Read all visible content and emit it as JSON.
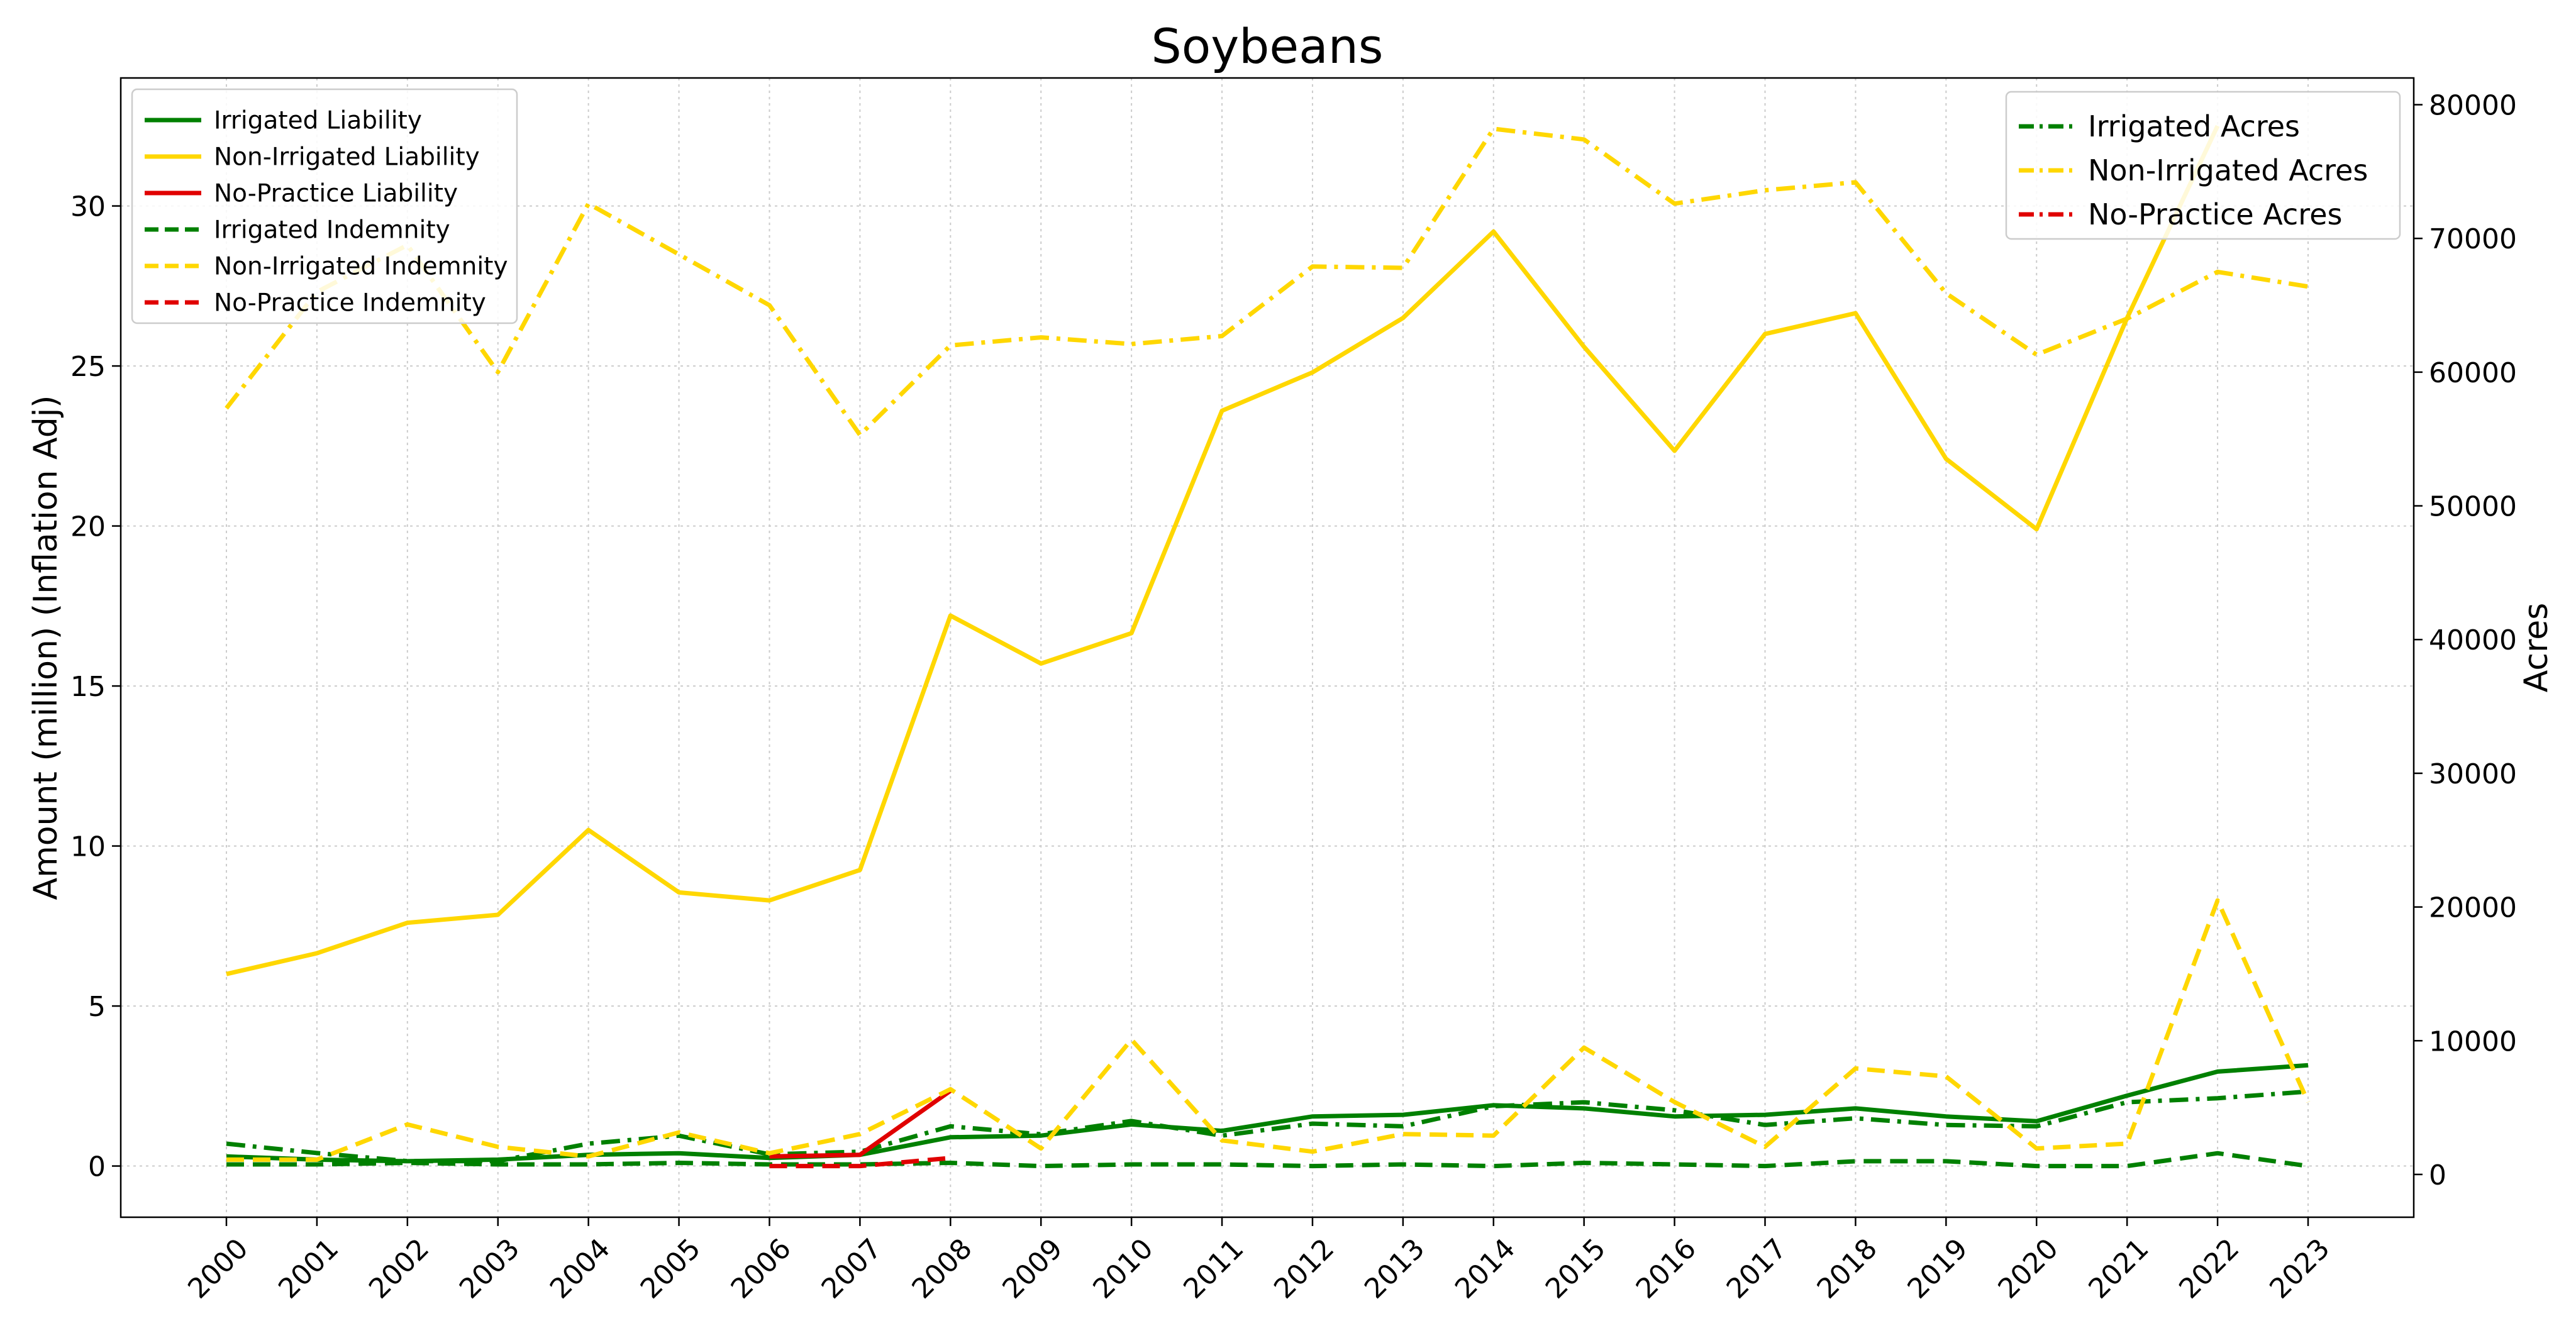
{
  "chart_data": {
    "type": "line",
    "title": "Soybeans",
    "xlabel": "",
    "ylabel": "Amount (million) (Inflation Adj)",
    "y2label": "Acres",
    "categories": [
      "2000",
      "2001",
      "2002",
      "2003",
      "2004",
      "2005",
      "2006",
      "2007",
      "2008",
      "2009",
      "2010",
      "2011",
      "2012",
      "2013",
      "2014",
      "2015",
      "2016",
      "2017",
      "2018",
      "2019",
      "2020",
      "2021",
      "2022",
      "2023"
    ],
    "ylim": [
      -1.6,
      34.0
    ],
    "y2lim": [
      -3200,
      82000
    ],
    "yticks": [
      0,
      5,
      10,
      15,
      20,
      25,
      30
    ],
    "y2ticks": [
      0,
      10000,
      20000,
      30000,
      40000,
      50000,
      60000,
      70000,
      80000
    ],
    "grid": true,
    "legend_left_placement": "upper-left",
    "legend_right_placement": "upper-right",
    "series_left": [
      {
        "name": "Irrigated Liability",
        "color": "#008000",
        "style": "solid",
        "values": [
          0.3,
          0.2,
          0.15,
          0.2,
          0.35,
          0.4,
          0.25,
          0.35,
          0.9,
          0.95,
          1.3,
          1.1,
          1.55,
          1.6,
          1.9,
          1.8,
          1.55,
          1.6,
          1.8,
          1.55,
          1.4,
          2.2,
          2.95,
          3.15
        ]
      },
      {
        "name": "Non-Irrigated Liability",
        "color": "#FFD700",
        "style": "solid",
        "values": [
          6.0,
          6.65,
          7.6,
          7.85,
          10.5,
          8.55,
          8.3,
          9.25,
          17.2,
          15.7,
          16.65,
          23.6,
          24.8,
          26.5,
          29.2,
          25.6,
          22.35,
          26.0,
          26.65,
          22.1,
          19.9,
          26.5,
          32.5,
          null
        ]
      },
      {
        "name": "No-Practice Liability",
        "color": "#E00000",
        "style": "solid",
        "values": [
          null,
          null,
          null,
          null,
          null,
          null,
          0.3,
          0.35,
          2.35,
          null,
          null,
          null,
          null,
          null,
          null,
          null,
          null,
          null,
          null,
          null,
          null,
          null,
          null,
          null
        ]
      },
      {
        "name": "Irrigated Indemnity",
        "color": "#008000",
        "style": "dashed",
        "values": [
          0.05,
          0.05,
          0.1,
          0.05,
          0.05,
          0.1,
          0.05,
          0.05,
          0.1,
          0.0,
          0.05,
          0.05,
          0.0,
          0.05,
          0.0,
          0.1,
          0.05,
          0.0,
          0.15,
          0.15,
          0.0,
          0.0,
          0.4,
          0.0
        ]
      },
      {
        "name": "Non-Irrigated Indemnity",
        "color": "#FFD700",
        "style": "dashed",
        "values": [
          0.2,
          0.2,
          1.3,
          0.6,
          0.3,
          1.05,
          0.4,
          1.0,
          2.4,
          0.55,
          3.95,
          0.8,
          0.45,
          1.0,
          0.95,
          3.7,
          2.0,
          0.6,
          3.05,
          2.8,
          0.55,
          0.7,
          8.3,
          2.0
        ]
      },
      {
        "name": "No-Practice Indemnity",
        "color": "#E00000",
        "style": "dashed",
        "values": [
          null,
          null,
          null,
          null,
          null,
          null,
          0.0,
          0.0,
          0.25,
          null,
          null,
          null,
          null,
          null,
          null,
          null,
          null,
          null,
          null,
          null,
          null,
          null,
          null,
          null
        ]
      }
    ],
    "series_right": [
      {
        "name": "Irrigated Acres",
        "color": "#008000",
        "style": "dashdot",
        "values": [
          2300,
          1600,
          1000,
          1000,
          2300,
          2900,
          1500,
          1700,
          3600,
          3000,
          4000,
          2900,
          3800,
          3600,
          5100,
          5400,
          4800,
          3700,
          4200,
          3700,
          3600,
          5400,
          5700,
          6200
        ]
      },
      {
        "name": "Non-Irrigated Acres",
        "color": "#FFD700",
        "style": "dashdot",
        "values": [
          57300,
          66000,
          69500,
          60000,
          72600,
          68800,
          65000,
          55300,
          62000,
          62600,
          62100,
          62700,
          67900,
          67800,
          78200,
          77400,
          72600,
          73600,
          74200,
          65900,
          61300,
          64000,
          67500,
          66400
        ]
      },
      {
        "name": "No-Practice Acres",
        "color": "#E00000",
        "style": "dashdot",
        "values": [
          null,
          null,
          null,
          null,
          null,
          null,
          null,
          null,
          null,
          null,
          null,
          null,
          null,
          null,
          null,
          null,
          null,
          null,
          null,
          null,
          null,
          null,
          null,
          null
        ]
      }
    ]
  }
}
